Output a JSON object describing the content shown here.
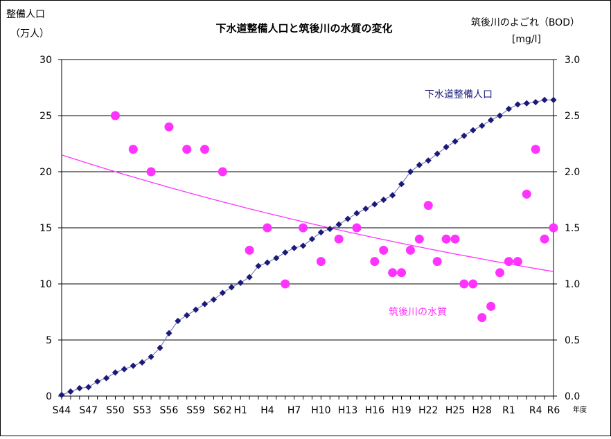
{
  "chart_data": {
    "type": "line+scatter",
    "title": "下水道整備人口と筑後川の水質の変化",
    "left_axis": {
      "label": "整備人口",
      "unit": "（万人）",
      "ylim": [
        0,
        30
      ],
      "ticks": [
        "0",
        "5",
        "10",
        "15",
        "20",
        "25",
        "30"
      ]
    },
    "right_axis": {
      "label": "筑後川のよごれ（BOD）",
      "unit": "[mg/l]",
      "ylim": [
        0,
        3.0
      ],
      "ticks": [
        "0.0",
        "0.5",
        "1.0",
        "1.5",
        "2.0",
        "2.5",
        "3.0"
      ]
    },
    "x_axis": {
      "unit_label": "年度",
      "categories": [
        "S44",
        "S45",
        "S46",
        "S47",
        "S48",
        "S49",
        "S50",
        "S51",
        "S52",
        "S53",
        "S54",
        "S55",
        "S56",
        "S57",
        "S58",
        "S59",
        "S60",
        "S61",
        "S62",
        "S63",
        "H1",
        "H2",
        "H3",
        "H4",
        "H5",
        "H6",
        "H7",
        "H8",
        "H9",
        "H10",
        "H11",
        "H12",
        "H13",
        "H14",
        "H15",
        "H16",
        "H17",
        "H18",
        "H19",
        "H20",
        "H21",
        "H22",
        "H23",
        "H24",
        "H25",
        "H26",
        "H27",
        "H28",
        "H29",
        "H30",
        "R1",
        "R2",
        "R3",
        "R4",
        "R5",
        "R6"
      ],
      "tick_labels": [
        "S44",
        "S47",
        "S50",
        "S53",
        "S56",
        "S59",
        "S62",
        "H1",
        "H4",
        "H7",
        "H10",
        "H13",
        "H16",
        "H19",
        "H22",
        "H25",
        "H28",
        "R1",
        "R4",
        "R6"
      ]
    },
    "grid": true,
    "series": [
      {
        "name": "下水道整備人口",
        "axis": "left",
        "color": "#1a1a7a",
        "marker": "diamond",
        "values": [
          0.1,
          0.4,
          0.7,
          0.8,
          1.3,
          1.6,
          2.1,
          2.4,
          2.7,
          3.0,
          3.5,
          4.3,
          5.6,
          6.7,
          7.2,
          7.7,
          8.2,
          8.6,
          9.2,
          9.7,
          10.1,
          10.6,
          11.6,
          11.9,
          12.3,
          12.8,
          13.2,
          13.4,
          14.0,
          14.6,
          14.9,
          15.3,
          15.8,
          16.3,
          16.7,
          17.1,
          17.5,
          17.9,
          18.9,
          20.0,
          20.6,
          21.0,
          21.6,
          22.2,
          22.7,
          23.2,
          23.7,
          24.1,
          24.6,
          25.0,
          25.6,
          26.0,
          26.1,
          26.2,
          26.4,
          26.4
        ]
      },
      {
        "name": "筑後川の水質",
        "axis": "right",
        "color": "#ff33ff",
        "marker": "circle",
        "points": [
          [
            "S50",
            2.5
          ],
          [
            "S52",
            2.2
          ],
          [
            "S54",
            2.0
          ],
          [
            "S56",
            2.4
          ],
          [
            "S58",
            2.2
          ],
          [
            "S60",
            2.2
          ],
          [
            "S62",
            2.0
          ],
          [
            "H2",
            1.3
          ],
          [
            "H4",
            1.5
          ],
          [
            "H6",
            1.0
          ],
          [
            "H8",
            1.5
          ],
          [
            "H10",
            1.2
          ],
          [
            "H12",
            1.4
          ],
          [
            "H14",
            1.5
          ],
          [
            "H16",
            1.2
          ],
          [
            "H17",
            1.3
          ],
          [
            "H18",
            1.1
          ],
          [
            "H19",
            1.1
          ],
          [
            "H20",
            1.3
          ],
          [
            "H21",
            1.4
          ],
          [
            "H22",
            1.7
          ],
          [
            "H23",
            1.2
          ],
          [
            "H24",
            1.4
          ],
          [
            "H25",
            1.4
          ],
          [
            "H26",
            1.0
          ],
          [
            "H27",
            1.0
          ],
          [
            "H28",
            0.7
          ],
          [
            "H29",
            0.8
          ],
          [
            "H30",
            1.1
          ],
          [
            "R1",
            1.2
          ],
          [
            "R2",
            1.2
          ],
          [
            "R3",
            1.8
          ],
          [
            "R4",
            2.2
          ],
          [
            "R5",
            1.4
          ],
          [
            "R6",
            1.5
          ]
        ],
        "trendline": {
          "type": "exponential",
          "start": 2.15,
          "end": 1.11
        }
      }
    ],
    "annotations": [
      {
        "text": "下水道整備人口",
        "series": "下水道整備人口"
      },
      {
        "text": "筑後川の水質",
        "series": "筑後川の水質"
      }
    ]
  }
}
